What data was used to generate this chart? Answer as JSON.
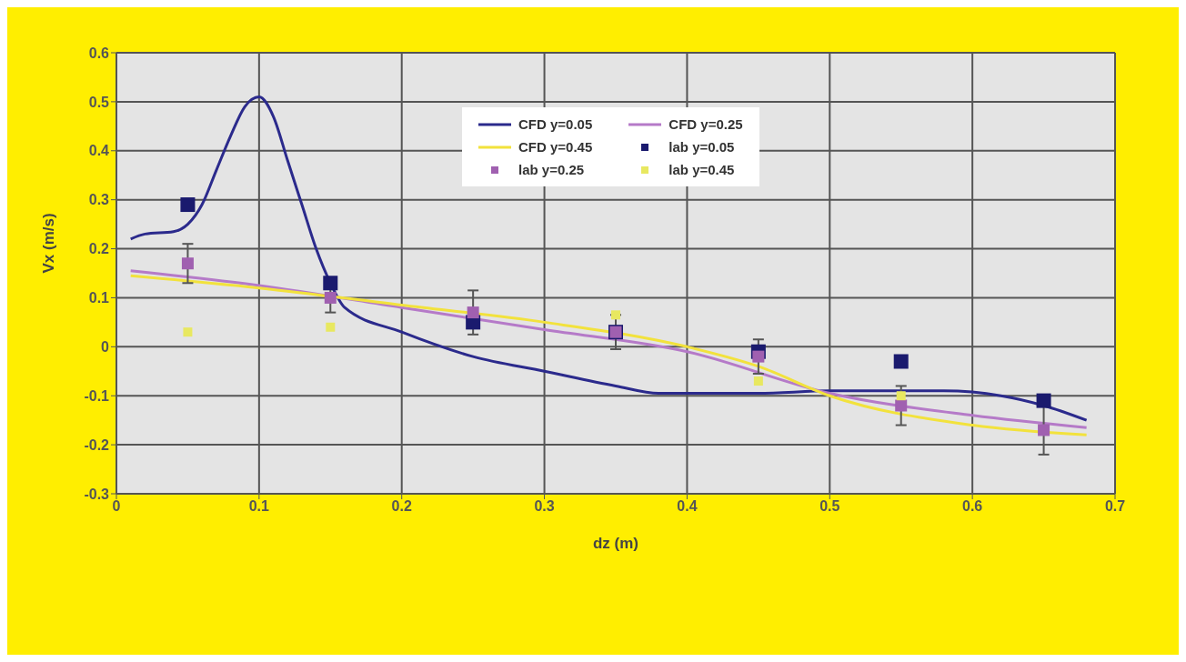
{
  "chart_data": {
    "type": "line",
    "xlabel": "dz (m)",
    "ylabel": "Vx (m/s)",
    "xlim": [
      0,
      0.7
    ],
    "ylim": [
      -0.3,
      0.6
    ],
    "xticks": [
      0,
      0.1,
      0.2,
      0.3,
      0.4,
      0.5,
      0.6,
      0.7
    ],
    "yticks": [
      -0.3,
      -0.2,
      -0.1,
      0,
      0.1,
      0.2,
      0.3,
      0.4,
      0.5,
      0.6
    ],
    "grid": true,
    "legend": "top",
    "marker": "none",
    "series": [
      {
        "name": "CFD y=0.05",
        "color": "#2b2a8c",
        "x": [
          0.01,
          0.02,
          0.04,
          0.05,
          0.06,
          0.07,
          0.08,
          0.09,
          0.1,
          0.11,
          0.12,
          0.13,
          0.14,
          0.15,
          0.16,
          0.2,
          0.25,
          0.3,
          0.35,
          0.38,
          0.45,
          0.5,
          0.55,
          0.58,
          0.62,
          0.65,
          0.68
        ],
        "values": [
          0.22,
          0.23,
          0.235,
          0.25,
          0.29,
          0.36,
          0.43,
          0.49,
          0.51,
          0.47,
          0.38,
          0.29,
          0.2,
          0.13,
          0.08,
          0.03,
          -0.02,
          -0.05,
          -0.08,
          -0.095,
          -0.095,
          -0.09,
          -0.09,
          -0.09,
          -0.1,
          -0.12,
          -0.15
        ]
      },
      {
        "name": "CFD y=0.25",
        "color": "#b57ac8",
        "x": [
          0.01,
          0.1,
          0.2,
          0.3,
          0.4,
          0.5,
          0.6,
          0.68
        ],
        "values": [
          0.155,
          0.125,
          0.08,
          0.035,
          -0.01,
          -0.095,
          -0.14,
          -0.165
        ]
      },
      {
        "name": "CFD y=0.45",
        "color": "#f2e23c",
        "x": [
          0.01,
          0.1,
          0.2,
          0.3,
          0.4,
          0.45,
          0.5,
          0.6,
          0.68
        ],
        "values": [
          0.145,
          0.12,
          0.085,
          0.05,
          0.0,
          -0.04,
          -0.1,
          -0.16,
          -0.18
        ]
      },
      {
        "name": "lab y=0.05",
        "type": "scatter",
        "marker": "square",
        "color": "#1a1a6e",
        "x": [
          0.05,
          0.15,
          0.25,
          0.35,
          0.45,
          0.55,
          0.65
        ],
        "values": [
          0.29,
          0.13,
          0.05,
          0.03,
          -0.01,
          -0.03,
          -0.11
        ]
      },
      {
        "name": "lab y=0.25",
        "type": "scatter",
        "marker": "square",
        "color": "#a060b0",
        "x": [
          0.05,
          0.15,
          0.25,
          0.35,
          0.45,
          0.55,
          0.65
        ],
        "values": [
          0.17,
          0.1,
          0.07,
          0.03,
          -0.02,
          -0.12,
          -0.17
        ],
        "errors": [
          0.04,
          0.03,
          0.045,
          0.035,
          0.035,
          0.04,
          0.05
        ]
      },
      {
        "name": "lab y=0.45",
        "type": "scatter",
        "marker": "square",
        "color": "#e8e860",
        "x": [
          0.05,
          0.15,
          0.35,
          0.45,
          0.55
        ],
        "values": [
          0.03,
          0.04,
          0.065,
          -0.07,
          -0.1
        ]
      }
    ]
  }
}
